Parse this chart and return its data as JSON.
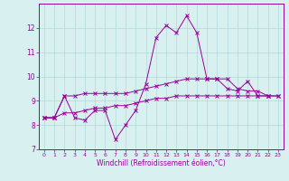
{
  "xlabel": "Windchill (Refroidissement éolien,°C)",
  "x": [
    0,
    1,
    2,
    3,
    4,
    5,
    6,
    7,
    8,
    9,
    10,
    11,
    12,
    13,
    14,
    15,
    16,
    17,
    18,
    19,
    20,
    21,
    22,
    23
  ],
  "line1": [
    8.3,
    8.3,
    9.2,
    8.3,
    8.2,
    8.6,
    8.6,
    7.4,
    8.0,
    8.6,
    9.7,
    11.6,
    12.1,
    11.8,
    12.5,
    11.8,
    9.9,
    9.9,
    9.5,
    9.4,
    9.8,
    9.2,
    9.2,
    null
  ],
  "line2": [
    8.3,
    8.3,
    9.2,
    9.2,
    9.3,
    9.3,
    9.3,
    9.3,
    9.3,
    9.4,
    9.5,
    9.6,
    9.7,
    9.8,
    9.9,
    9.9,
    9.9,
    9.9,
    9.9,
    9.5,
    9.4,
    9.4,
    9.2,
    9.2
  ],
  "line3": [
    8.3,
    8.3,
    8.5,
    8.5,
    8.6,
    8.7,
    8.7,
    8.8,
    8.8,
    8.9,
    9.0,
    9.1,
    9.1,
    9.2,
    9.2,
    9.2,
    9.2,
    9.2,
    9.2,
    9.2,
    9.2,
    9.2,
    9.2,
    9.2
  ],
  "line_color": "#990099",
  "bg_color": "#d8f0f0",
  "grid_color": "#b0d8d8",
  "ylim": [
    7,
    13
  ],
  "xlim": [
    -0.5,
    23.5
  ],
  "yticks": [
    7,
    8,
    9,
    10,
    11,
    12
  ],
  "xticks": [
    0,
    1,
    2,
    3,
    4,
    5,
    6,
    7,
    8,
    9,
    10,
    11,
    12,
    13,
    14,
    15,
    16,
    17,
    18,
    19,
    20,
    21,
    22,
    23
  ]
}
